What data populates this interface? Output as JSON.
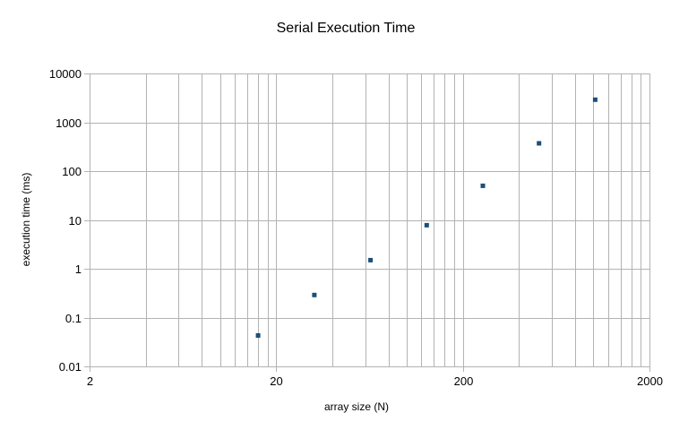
{
  "chart_data": {
    "type": "scatter",
    "title": "Serial Execution Time",
    "xlabel": "array size (N)",
    "ylabel": "execution time (ms)",
    "x_scale": "log",
    "y_scale": "log",
    "xlim": [
      2,
      2000
    ],
    "ylim": [
      0.01,
      10000
    ],
    "x_ticks": [
      2,
      20,
      200,
      2000
    ],
    "x_tick_labels": [
      "2",
      "20",
      "200",
      "2000"
    ],
    "y_ticks": [
      0.01,
      0.1,
      1,
      10,
      100,
      1000,
      10000
    ],
    "y_tick_labels": [
      "0.01",
      "0.1",
      "1",
      "10",
      "100",
      "1000",
      "10000"
    ],
    "grid": true,
    "legend": "none",
    "series": [
      {
        "color": "#1a4f7a",
        "marker": "square",
        "x": [
          16,
          32,
          64,
          128,
          256,
          512,
          1024
        ],
        "y": [
          0.043,
          0.29,
          1.5,
          7.8,
          50,
          370,
          2900
        ]
      }
    ],
    "colors": {
      "grid": "#b3b3b3",
      "axis_text": "#000000",
      "background": "#ffffff"
    }
  }
}
